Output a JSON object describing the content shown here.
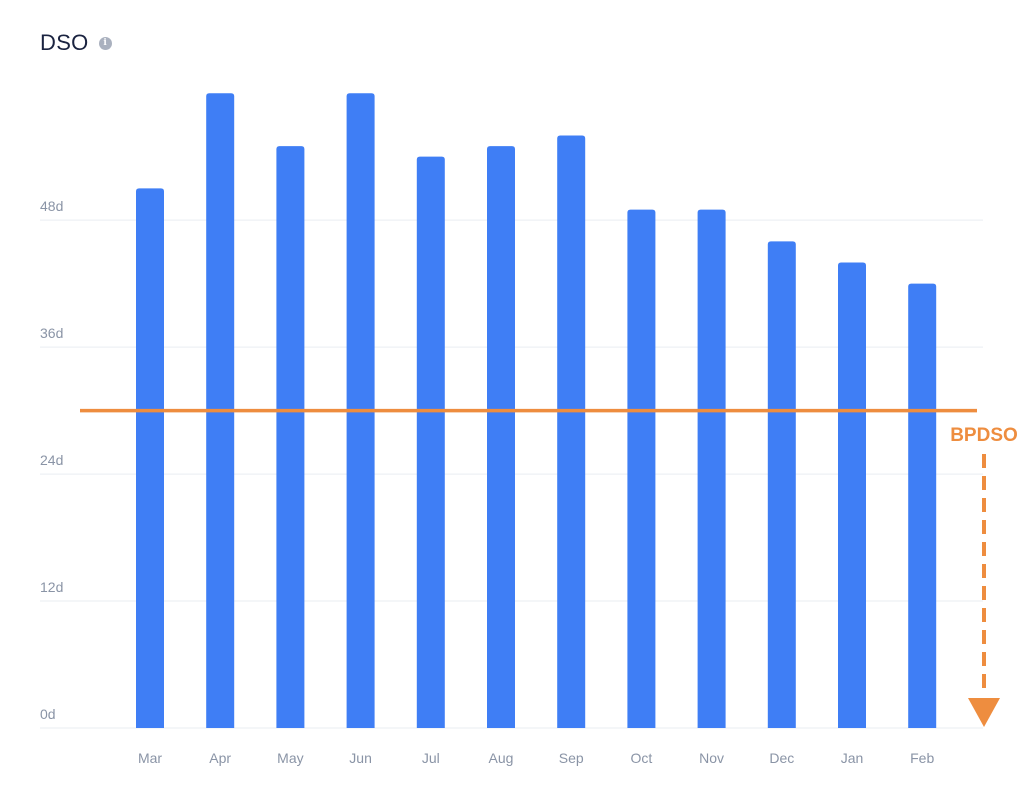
{
  "header": {
    "title": "DSO",
    "info_icon": "info-icon"
  },
  "colors": {
    "bar": "#3f7ef5",
    "reference": "#ee8d3f",
    "grid": "#e9edf2",
    "tick": "#8a94a6",
    "title": "#1a2340"
  },
  "chart_data": {
    "type": "bar",
    "title": "DSO",
    "xlabel": "",
    "ylabel": "",
    "categories": [
      "Mar",
      "Apr",
      "May",
      "Jun",
      "Jul",
      "Aug",
      "Sep",
      "Oct",
      "Nov",
      "Dec",
      "Jan",
      "Feb"
    ],
    "series": [
      {
        "values": [
          51,
          60,
          55,
          60,
          54,
          55,
          56,
          49,
          49,
          46,
          44,
          42
        ]
      }
    ],
    "ylim": [
      0,
      60
    ],
    "yticks": [
      0,
      12,
      24,
      36,
      48
    ],
    "ytick_labels": [
      "0d",
      "12d",
      "24d",
      "36d",
      "48d"
    ],
    "grid": true,
    "legend": "none",
    "reference_line": {
      "label": "BPDSO",
      "value": 30,
      "arrow": "down"
    }
  }
}
